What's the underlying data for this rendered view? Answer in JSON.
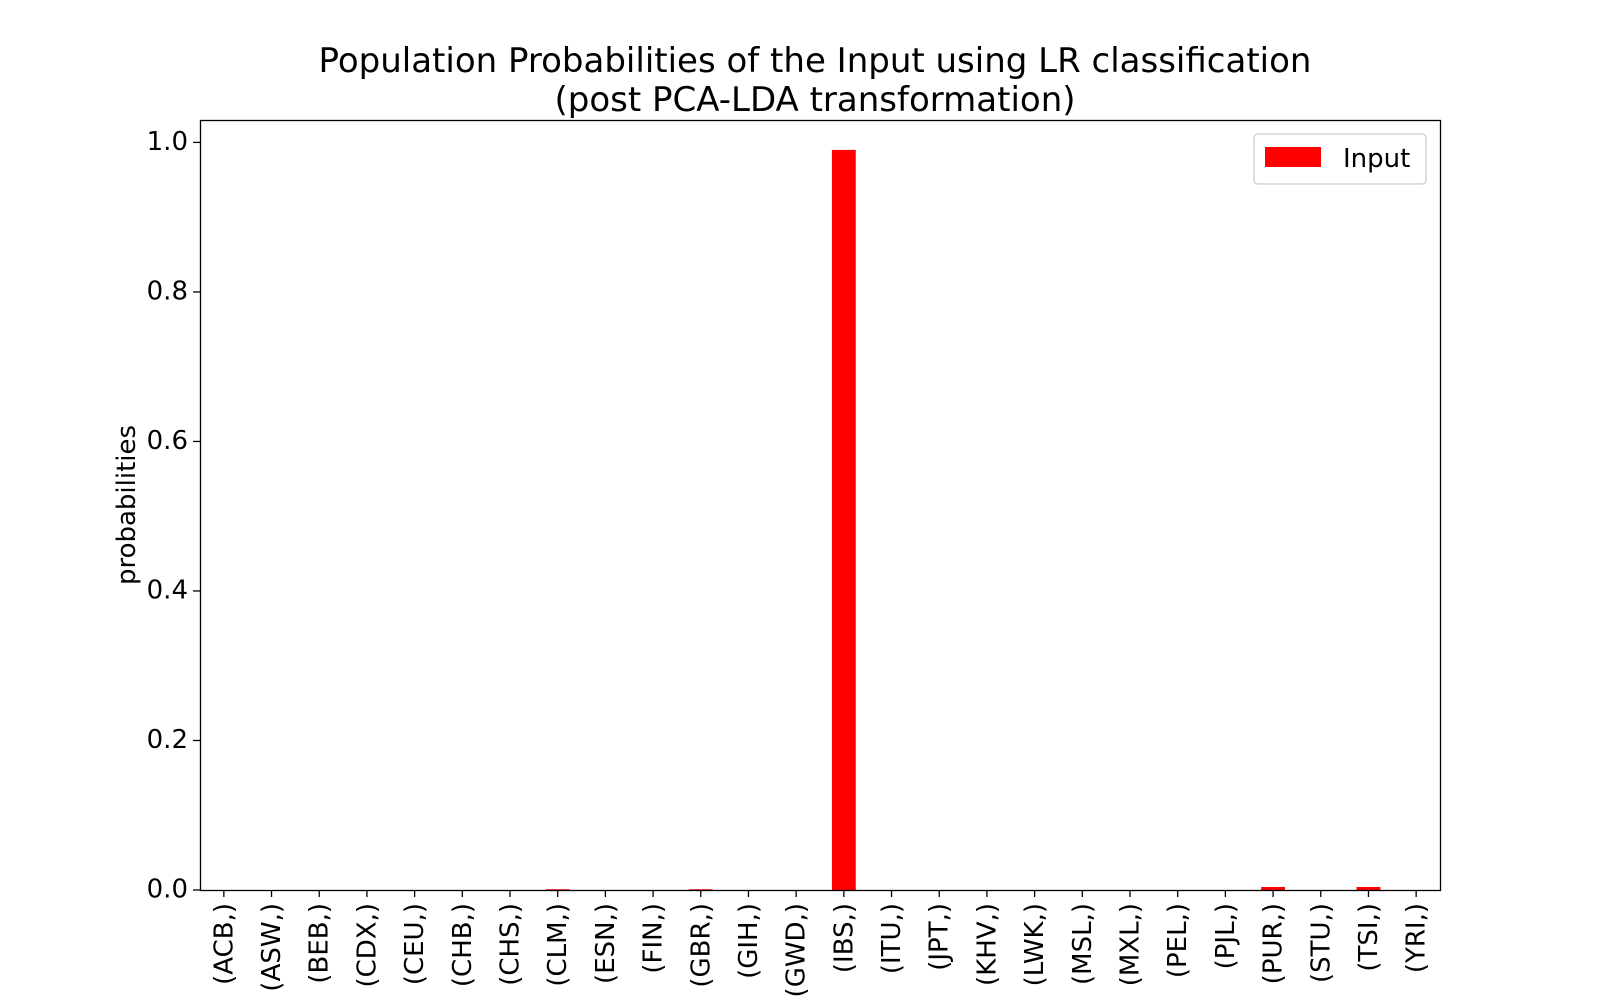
{
  "chart_data": {
    "type": "bar",
    "title_line1": "Population Probabilities of the Input using LR classification",
    "title_line2": "(post PCA-LDA transformation)",
    "xlabel": "",
    "ylabel": "probabilities",
    "ylim": [
      0,
      1.03
    ],
    "yticks": [
      "0.0",
      "0.2",
      "0.4",
      "0.6",
      "0.8",
      "1.0"
    ],
    "grid": false,
    "legend_position": "top-right",
    "categories": [
      "(ACB,)",
      "(ASW,)",
      "(BEB,)",
      "(CDX,)",
      "(CEU,)",
      "(CHB,)",
      "(CHS,)",
      "(CLM,)",
      "(ESN,)",
      "(FIN,)",
      "(GBR,)",
      "(GIH,)",
      "(GWD,)",
      "(IBS,)",
      "(ITU,)",
      "(JPT,)",
      "(KHV,)",
      "(LWK,)",
      "(MSL,)",
      "(MXL,)",
      "(PEL,)",
      "(PJL,)",
      "(PUR,)",
      "(STU,)",
      "(TSI,)",
      "(YRI,)"
    ],
    "series": [
      {
        "name": "Input",
        "color": "#ff0000",
        "values": [
          0.0,
          0.0,
          0.0,
          0.0,
          0.0,
          0.0,
          0.0,
          0.001,
          0.0,
          0.0,
          0.001,
          0.0,
          0.0,
          0.99,
          0.0,
          0.0,
          0.0,
          0.0,
          0.0,
          0.0,
          0.0,
          0.0,
          0.004,
          0.0,
          0.004,
          0.0
        ]
      }
    ]
  }
}
